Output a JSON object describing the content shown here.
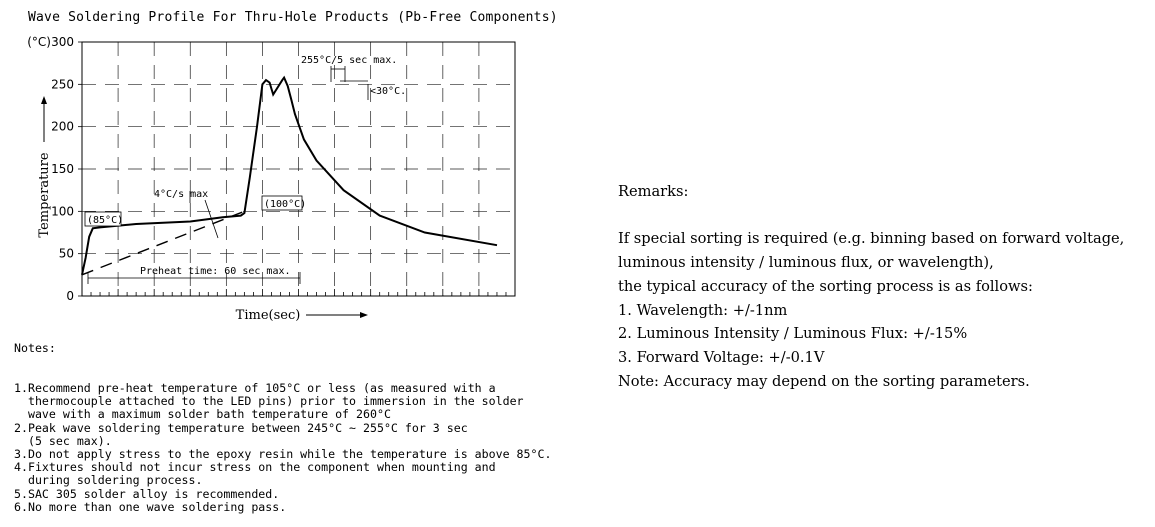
{
  "chart_data": {
    "type": "line",
    "title": "Wave Soldering Profile For Thru-Hole Products (Pb-Free Components)",
    "xlabel": "Time(sec)",
    "ylabel": "Temperature",
    "y_unit": "(°C)",
    "ylim": [
      0,
      300
    ],
    "y_ticks": [
      "0",
      "50",
      "100",
      "150",
      "200",
      "250",
      "300"
    ],
    "grid": true,
    "series": [
      {
        "line_style": "solid",
        "points": [
          [
            0,
            25
          ],
          [
            2,
            45
          ],
          [
            4,
            70
          ],
          [
            6,
            80
          ],
          [
            10,
            81
          ],
          [
            30,
            85
          ],
          [
            60,
            88
          ],
          [
            78,
            93
          ],
          [
            88,
            95
          ],
          [
            90,
            98
          ],
          [
            93,
            140
          ],
          [
            97,
            200
          ],
          [
            100,
            250
          ],
          [
            102,
            255
          ],
          [
            104,
            252
          ],
          [
            105,
            245
          ],
          [
            106,
            238
          ],
          [
            108,
            245
          ],
          [
            111,
            255
          ],
          [
            112,
            258
          ],
          [
            114,
            248
          ],
          [
            116,
            232
          ],
          [
            118,
            215
          ],
          [
            123,
            185
          ],
          [
            130,
            160
          ],
          [
            145,
            125
          ],
          [
            165,
            95
          ],
          [
            190,
            75
          ],
          [
            230,
            60
          ]
        ]
      },
      {
        "line_style": "dashed",
        "points": [
          [
            0,
            25
          ],
          [
            90,
            100
          ]
        ]
      }
    ],
    "annotations": [
      {
        "text": "(85°C)",
        "style": "boxed"
      },
      {
        "text": "4°C/s max"
      },
      {
        "text": "(100°C)",
        "style": "boxed"
      },
      {
        "text": "255°C/5 sec max."
      },
      {
        "text": "<30°C."
      },
      {
        "text": "Preheat time: 60 sec max."
      }
    ]
  },
  "notes": {
    "heading": "Notes:",
    "lines": [
      "1.Recommend pre-heat temperature of 105°C or less (as measured with a",
      "  thermocouple attached to the LED pins) prior to immersion in the solder",
      "  wave with a maximum solder bath temperature of 260°C",
      "2.Peak wave soldering temperature between 245°C ~ 255°C for 3 sec",
      "  (5 sec max).",
      "3.Do not apply stress to the epoxy resin while the temperature is above 85°C.",
      "4.Fixtures should not incur stress on the component when mounting and",
      "  during soldering process.",
      "5.SAC 305 solder alloy is recommended.",
      "6.No more than one wave soldering pass."
    ]
  },
  "remarks": {
    "heading": "Remarks:",
    "lines": [
      "If special sorting is required (e.g. binning based on forward voltage,",
      "luminous intensity / luminous flux, or wavelength),",
      "the typical accuracy of the sorting process is as follows:",
      "1. Wavelength: +/-1nm",
      "2. Luminous Intensity / Luminous Flux: +/-15%",
      "3. Forward Voltage: +/-0.1V",
      "Note: Accuracy may depend on the sorting parameters."
    ]
  }
}
